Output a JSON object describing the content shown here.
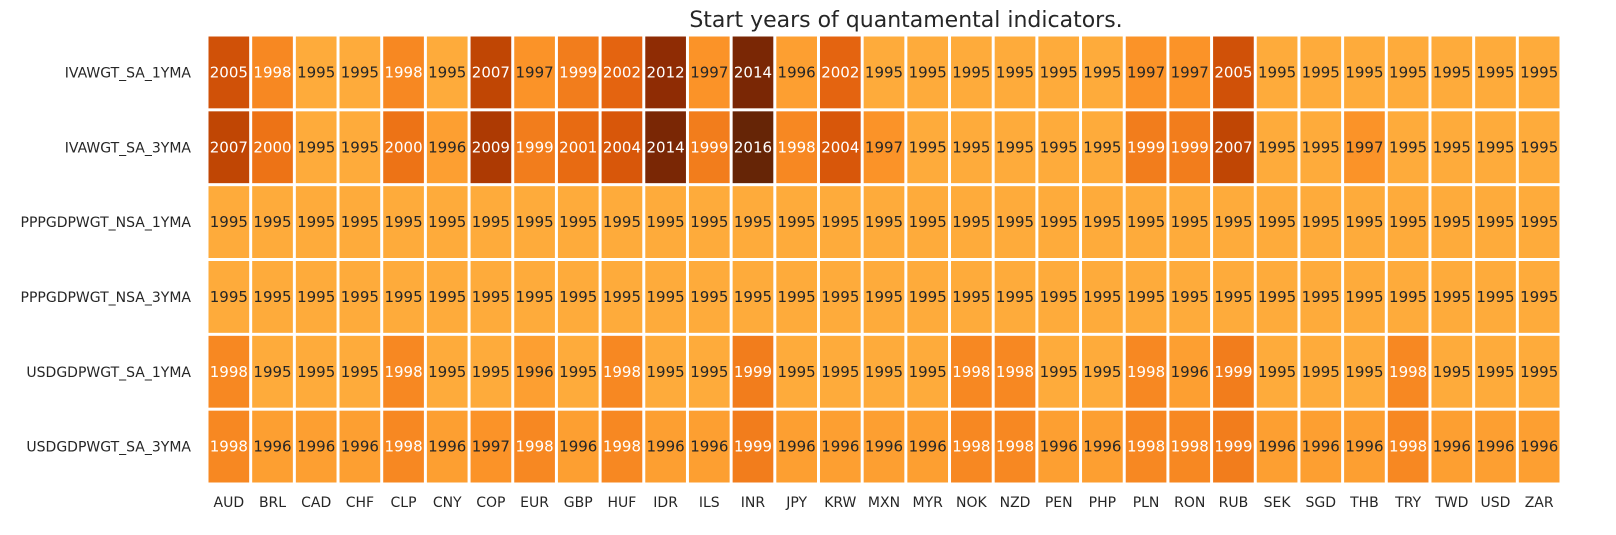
{
  "chart_data": {
    "type": "heatmap",
    "title": "Start years of quantamental indicators.",
    "xlabel": "",
    "ylabel": "",
    "columns": [
      "AUD",
      "BRL",
      "CAD",
      "CHF",
      "CLP",
      "CNY",
      "COP",
      "EUR",
      "GBP",
      "HUF",
      "IDR",
      "ILS",
      "INR",
      "JPY",
      "KRW",
      "MXN",
      "MYR",
      "NOK",
      "NZD",
      "PEN",
      "PHP",
      "PLN",
      "RON",
      "RUB",
      "SEK",
      "SGD",
      "THB",
      "TRY",
      "TWD",
      "USD",
      "ZAR"
    ],
    "rows": [
      "IVAWGT_SA_1YMA",
      "IVAWGT_SA_3YMA",
      "PPPGDPWGT_NSA_1YMA",
      "PPPGDPWGT_NSA_3YMA",
      "USDGDPWGT_SA_1YMA",
      "USDGDPWGT_SA_3YMA"
    ],
    "values": [
      [
        2005,
        1998,
        1995,
        1995,
        1998,
        1995,
        2007,
        1997,
        1999,
        2002,
        2012,
        1997,
        2014,
        1996,
        2002,
        1995,
        1995,
        1995,
        1995,
        1995,
        1995,
        1997,
        1997,
        2005,
        1995,
        1995,
        1995,
        1995,
        1995,
        1995,
        1995
      ],
      [
        2007,
        2000,
        1995,
        1995,
        2000,
        1996,
        2009,
        1999,
        2001,
        2004,
        2014,
        1999,
        2016,
        1998,
        2004,
        1997,
        1995,
        1995,
        1995,
        1995,
        1995,
        1999,
        1999,
        2007,
        1995,
        1995,
        1997,
        1995,
        1995,
        1995,
        1995
      ],
      [
        1995,
        1995,
        1995,
        1995,
        1995,
        1995,
        1995,
        1995,
        1995,
        1995,
        1995,
        1995,
        1995,
        1995,
        1995,
        1995,
        1995,
        1995,
        1995,
        1995,
        1995,
        1995,
        1995,
        1995,
        1995,
        1995,
        1995,
        1995,
        1995,
        1995,
        1995
      ],
      [
        1995,
        1995,
        1995,
        1995,
        1995,
        1995,
        1995,
        1995,
        1995,
        1995,
        1995,
        1995,
        1995,
        1995,
        1995,
        1995,
        1995,
        1995,
        1995,
        1995,
        1995,
        1995,
        1995,
        1995,
        1995,
        1995,
        1995,
        1995,
        1995,
        1995,
        1995
      ],
      [
        1998,
        1995,
        1995,
        1995,
        1998,
        1995,
        1995,
        1996,
        1995,
        1998,
        1995,
        1995,
        1999,
        1995,
        1995,
        1995,
        1995,
        1998,
        1998,
        1995,
        1995,
        1998,
        1996,
        1999,
        1995,
        1995,
        1995,
        1998,
        1995,
        1995,
        1995
      ],
      [
        1998,
        1996,
        1996,
        1996,
        1998,
        1996,
        1997,
        1998,
        1996,
        1998,
        1996,
        1996,
        1999,
        1996,
        1996,
        1996,
        1996,
        1998,
        1998,
        1996,
        1996,
        1998,
        1998,
        1999,
        1996,
        1996,
        1996,
        1998,
        1996,
        1996,
        1996
      ]
    ],
    "value_range": [
      1995,
      2016
    ],
    "colormap": "YlOrBr",
    "grid": false,
    "legend": "none"
  }
}
